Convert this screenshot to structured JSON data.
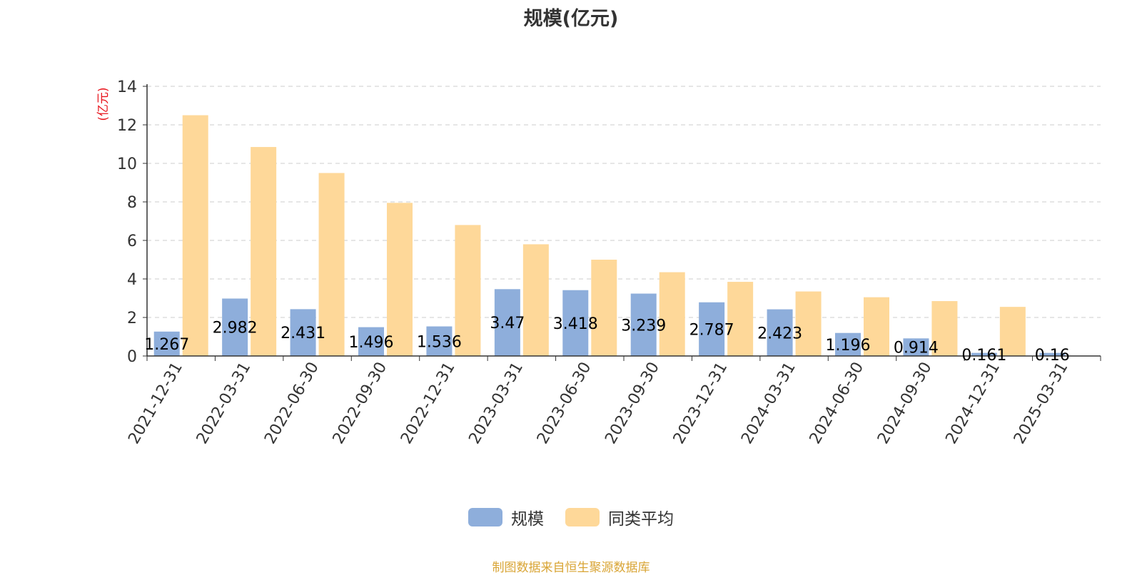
{
  "chart_data": {
    "type": "bar",
    "title": "规模(亿元)",
    "ylabel": "(亿元)",
    "xlabel": "",
    "ylim": [
      0,
      14
    ],
    "yticks": [
      0,
      2,
      4,
      6,
      8,
      10,
      12,
      14
    ],
    "grid": true,
    "legend_position": "bottom",
    "categories": [
      "2021-12-31",
      "2022-03-31",
      "2022-06-30",
      "2022-09-30",
      "2022-12-31",
      "2023-03-31",
      "2023-06-30",
      "2023-09-30",
      "2023-12-31",
      "2024-03-31",
      "2024-06-30",
      "2024-09-30",
      "2024-12-31",
      "2025-03-31"
    ],
    "series": [
      {
        "name": "规模",
        "color": "#8eaedb",
        "values": [
          1.267,
          2.982,
          2.431,
          1.496,
          1.536,
          3.47,
          3.418,
          3.239,
          2.787,
          2.423,
          1.196,
          0.914,
          0.161,
          0.16
        ],
        "labels": [
          "1.267",
          "2.982",
          "2.431",
          "1.496",
          "1.536",
          "3.47",
          "3.418",
          "3.239",
          "2.787",
          "2.423",
          "1.196",
          "0.914",
          "0.161",
          "0.16"
        ]
      },
      {
        "name": "同类平均",
        "color": "#fed899",
        "values": [
          12.5,
          10.85,
          9.5,
          7.95,
          6.8,
          5.8,
          5.0,
          4.35,
          3.85,
          3.35,
          3.05,
          2.85,
          2.55,
          null
        ]
      }
    ]
  },
  "footer": {
    "source": "制图数据来自恒生聚源数据库"
  },
  "colors": {
    "ylabel": "#e8141c",
    "axis": "#333333",
    "grid": "#cccccc",
    "source": "#d9a536"
  }
}
